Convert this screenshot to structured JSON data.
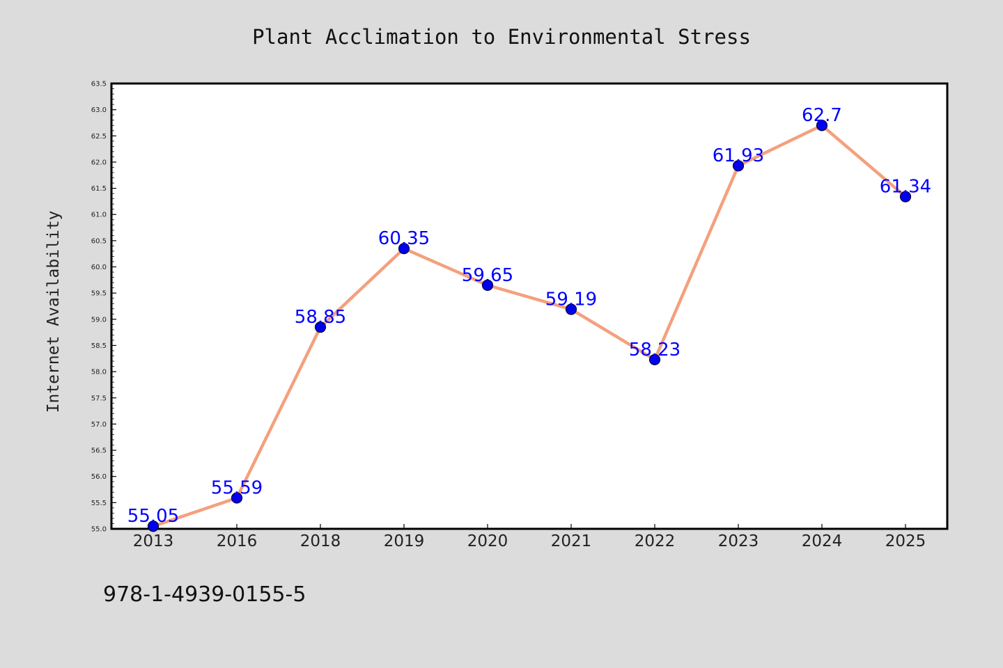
{
  "chart_data": {
    "type": "line",
    "title": "Plant Acclimation to Environmental Stress",
    "xlabel": "",
    "ylabel": "Internet Availability",
    "categories": [
      "2013",
      "2016",
      "2018",
      "2019",
      "2020",
      "2021",
      "2022",
      "2023",
      "2024",
      "2025"
    ],
    "series": [
      {
        "values": [
          55.05,
          55.59,
          58.85,
          60.35,
          59.65,
          59.19,
          58.23,
          61.93,
          62.7,
          61.34
        ],
        "labels": [
          "55.05",
          "55.59",
          "58.85",
          "60.35",
          "59.65",
          "59.19",
          "58.23",
          "61.93",
          "62.7",
          "61.34"
        ]
      }
    ],
    "ylim": [
      55.0,
      63.5
    ],
    "yticks": [
      "55.0",
      "55.5",
      "56.0",
      "56.5",
      "57.0",
      "57.5",
      "58.0",
      "58.5",
      "59.0",
      "59.5",
      "60.0",
      "60.5",
      "61.0",
      "61.5",
      "62.0",
      "62.5",
      "63.0",
      "63.5"
    ],
    "grid": false,
    "legend": "none"
  },
  "footer": {
    "code": "978-1-4939-0155-5"
  },
  "colors": {
    "line": "#f4a07e",
    "marker": "#0000ee",
    "label": "#0000ff",
    "plot_bg": "#ffffff",
    "page_bg": "#dcdcdc"
  }
}
